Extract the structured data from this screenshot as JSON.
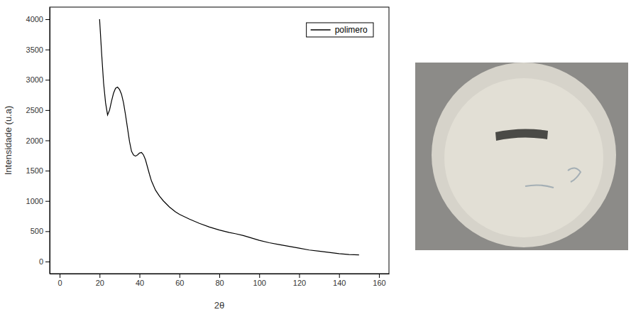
{
  "chart_data": {
    "type": "line",
    "x_label": "2θ",
    "y_label": "Intensidade (u.a)",
    "x": [
      20,
      21,
      22,
      23,
      24,
      25,
      26,
      27,
      28,
      29,
      30,
      31,
      32,
      33,
      34,
      35,
      36,
      37,
      38,
      39,
      40,
      41,
      42,
      43,
      44,
      45,
      46,
      48,
      50,
      52,
      55,
      58,
      60,
      65,
      70,
      75,
      80,
      85,
      88,
      92,
      95,
      100,
      105,
      110,
      115,
      120,
      125,
      130,
      135,
      140,
      145,
      150
    ],
    "series": [
      {
        "name": "polimero",
        "color": "#000000",
        "values": [
          4000,
          3450,
          2950,
          2620,
          2420,
          2500,
          2650,
          2780,
          2860,
          2880,
          2840,
          2760,
          2620,
          2420,
          2200,
          1980,
          1820,
          1760,
          1740,
          1760,
          1790,
          1800,
          1760,
          1680,
          1560,
          1440,
          1330,
          1180,
          1080,
          1000,
          900,
          820,
          780,
          700,
          630,
          570,
          520,
          480,
          460,
          430,
          400,
          350,
          310,
          280,
          250,
          220,
          190,
          170,
          150,
          130,
          115,
          110
        ]
      }
    ],
    "xlim": [
      -5,
      165
    ],
    "ylim": [
      -200,
      4200
    ],
    "xticks": [
      0,
      20,
      40,
      60,
      80,
      100,
      120,
      140,
      160
    ],
    "yticks": [
      0,
      500,
      1000,
      1500,
      2000,
      2500,
      3000,
      3500,
      4000
    ],
    "legend": "upper right",
    "grid": false
  }
}
